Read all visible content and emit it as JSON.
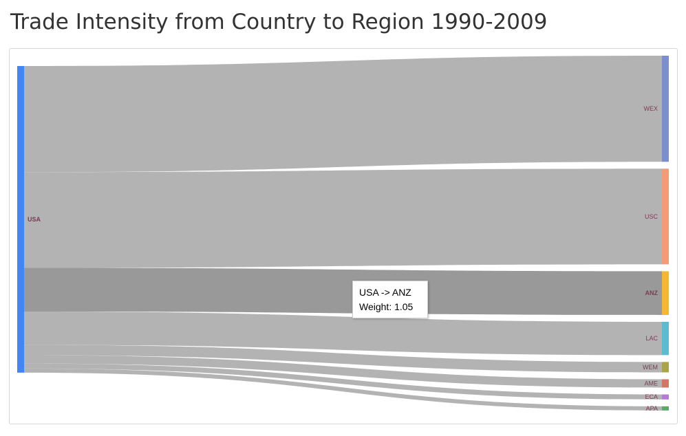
{
  "page": {
    "title": "Trade Intensity from Country to Region 1990-2009"
  },
  "tooltip": {
    "link": "USA -> ANZ",
    "weight_text": "Weight: 1.05"
  },
  "colors": {
    "link": "#b3b3b3",
    "link_hover": "#999999",
    "source_node": "#4285f4",
    "label": "#7a3b55"
  },
  "chart_data": {
    "type": "sankey",
    "title": "Trade Intensity from Country to Region 1990-2009",
    "source": {
      "name": "USA",
      "color": "#4285f4"
    },
    "highlighted_link": "ANZ",
    "targets": [
      {
        "name": "WEX",
        "weight": 2.55,
        "color": "#7b8fcf"
      },
      {
        "name": "USC",
        "weight": 2.3,
        "color": "#f49a75"
      },
      {
        "name": "ANZ",
        "weight": 1.05,
        "color": "#f5b731"
      },
      {
        "name": "LAC",
        "weight": 0.8,
        "color": "#5bbcd1"
      },
      {
        "name": "WEM",
        "weight": 0.25,
        "color": "#aba34a"
      },
      {
        "name": "AME",
        "weight": 0.2,
        "color": "#d47666"
      },
      {
        "name": "ECA",
        "weight": 0.12,
        "color": "#b57ad8"
      },
      {
        "name": "APA",
        "weight": 0.1,
        "color": "#5aa86a"
      }
    ]
  }
}
